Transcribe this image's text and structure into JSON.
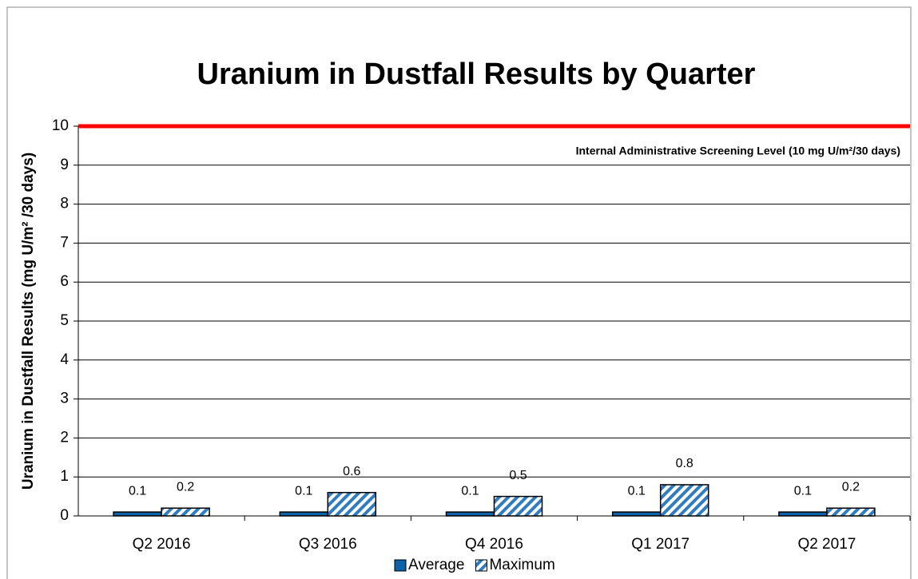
{
  "chart_data": {
    "type": "bar",
    "title": "Uranium in Dustfall Results by Quarter",
    "ylabel": "Uranium in Dustfall Results (mg U/m² /30 days)",
    "categories": [
      "Q2 2016",
      "Q3 2016",
      "Q4 2016",
      "Q1 2017",
      "Q2 2017"
    ],
    "series": [
      {
        "name": "Average",
        "color": "#0e62a8",
        "values": [
          0.1,
          0.1,
          0.1,
          0.1,
          0.1
        ]
      },
      {
        "name": "Maximum",
        "color": "#2f7cc0",
        "pattern": "diagonal",
        "values": [
          0.2,
          0.6,
          0.5,
          0.8,
          0.2
        ]
      }
    ],
    "ylim": [
      0,
      10
    ],
    "yticks": [
      0,
      1,
      2,
      3,
      4,
      5,
      6,
      7,
      8,
      9,
      10
    ],
    "grid": true,
    "legend": "bottom",
    "reference_line": {
      "value": 10,
      "color": "#ff0000",
      "label": "Internal Administrative Screening Level (10 mg U/m²/30 days)"
    }
  }
}
